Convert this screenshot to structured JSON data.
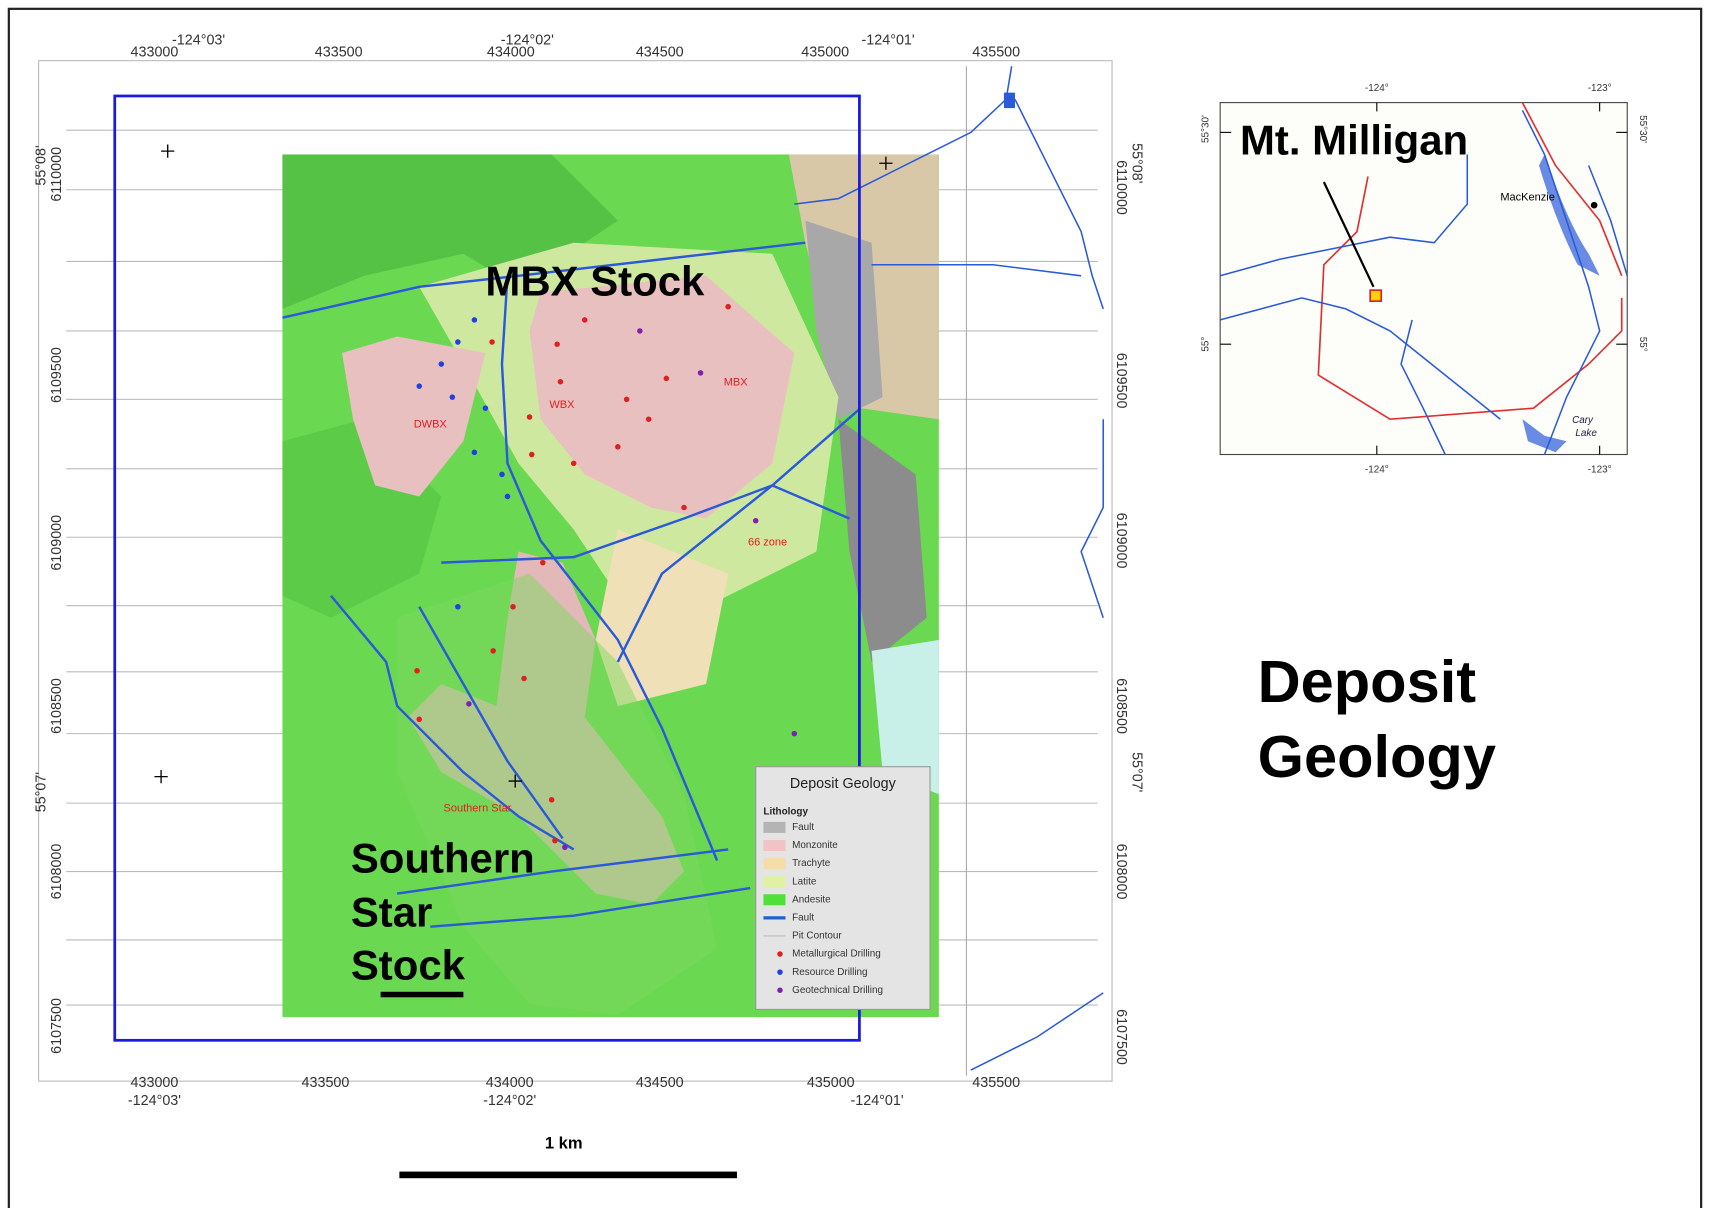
{
  "main_map": {
    "top_easting": [
      433000,
      433500,
      434000,
      434500,
      435000,
      435500
    ],
    "bottom_easting": [
      433000,
      433500,
      434000,
      434500,
      435000,
      435500
    ],
    "top_longitude": [
      "-124°03'",
      "-124°02'",
      "-124°01'"
    ],
    "bottom_longitude": [
      "-124°03'",
      "-124°02'",
      "-124°01'"
    ],
    "left_latitude": [
      "55°08'",
      "55°07'"
    ],
    "right_latitude": [
      "55°08'",
      "55°07'"
    ],
    "left_northing": [
      6110000,
      6109500,
      6109000,
      6108500,
      6108000,
      6107500
    ],
    "right_northing": [
      6110000,
      6109500,
      6109000,
      6108500,
      6108000,
      6107500
    ],
    "stock_labels": {
      "mbx": "MBX Stock",
      "southern_star": [
        "Southern",
        "Star",
        "Stock"
      ]
    },
    "zone_labels": [
      "DWBX",
      "WBX",
      "MBX",
      "66 zone",
      "Southern Star"
    ],
    "legend": {
      "title": "Deposit Geology",
      "heading": "Lithology",
      "items": [
        {
          "label": "Fault",
          "color": "#b4b4b4",
          "kind": "fill"
        },
        {
          "label": "Monzonite",
          "color": "#f0c4c4",
          "kind": "fill"
        },
        {
          "label": "Trachyte",
          "color": "#f5dca8",
          "kind": "fill"
        },
        {
          "label": "Latite",
          "color": "#dff2a4",
          "kind": "fill"
        },
        {
          "label": "Andesite",
          "color": "#4fe03a",
          "kind": "fill"
        },
        {
          "label": "Fault",
          "color": "#2060d0",
          "kind": "line"
        },
        {
          "label": "Pit Contour",
          "color": "#bbbbbb",
          "kind": "thin"
        },
        {
          "label": "Metallurgical Drilling",
          "color": "#e02020",
          "kind": "dot"
        },
        {
          "label": "Resource Drilling",
          "color": "#2040e0",
          "kind": "dot"
        },
        {
          "label": "Geotechnical Drilling",
          "color": "#8020b0",
          "kind": "dot"
        }
      ]
    },
    "scale_label": "1 km"
  },
  "inset_map": {
    "label": "Mt. Milligan",
    "town": "MacKenzie",
    "lake": [
      "Cary",
      "Lake"
    ],
    "top_longitude": [
      "-124°",
      "-123°"
    ],
    "bottom_longitude": [
      "-124°",
      "-123°"
    ],
    "left_latitude": [
      "55°30'",
      "55°"
    ],
    "right_latitude": [
      "55°30'",
      "55°"
    ]
  },
  "title": [
    "Deposit",
    "Geology"
  ]
}
